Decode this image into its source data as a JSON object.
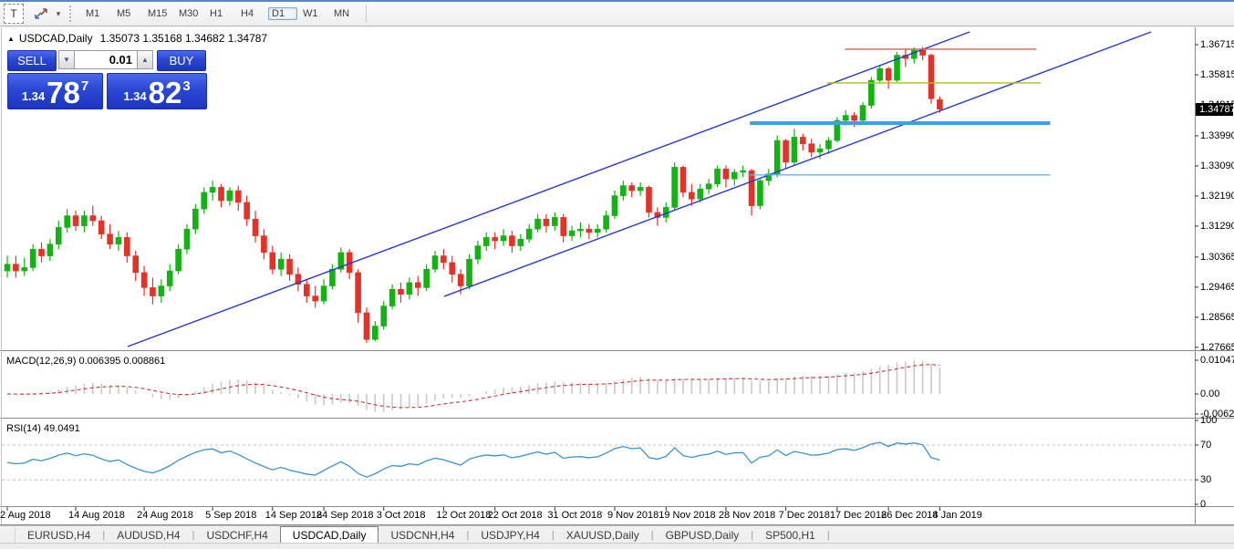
{
  "toolbar": {
    "text_tool_label": "T",
    "timeframes": [
      "M1",
      "M5",
      "M15",
      "M30",
      "H1",
      "H4",
      "D1",
      "W1",
      "MN"
    ],
    "active_timeframe": "D1"
  },
  "chart_header": {
    "collapse_arrow": "▲",
    "symbol_period": "USDCAD,Daily",
    "ohlc_text": "1.35073 1.35168 1.34682 1.34787"
  },
  "trade_panel": {
    "sell_label": "SELL",
    "buy_label": "BUY",
    "volume": "0.01",
    "spinner_down": "▼",
    "spinner_up": "▲",
    "sell_price": {
      "prefix": "1.34",
      "big": "78",
      "sup": "7"
    },
    "buy_price": {
      "prefix": "1.34",
      "big": "82",
      "sup": "3"
    }
  },
  "price_axis": {
    "labels": [
      "1.36715",
      "1.35815",
      "1.34915",
      "1.33990",
      "1.33090",
      "1.32190",
      "1.31290",
      "1.30365",
      "1.29465",
      "1.28565",
      "1.27665"
    ],
    "current": "1.34787"
  },
  "macd": {
    "label": "MACD(12,26,9) 0.006395 0.008861",
    "params": [
      12,
      26,
      9
    ],
    "main_value": 0.006395,
    "signal_value": 0.008861,
    "axis": [
      {
        "label": "0.010474",
        "value": 0.010474
      },
      {
        "label": "0.00",
        "value": 0
      },
      {
        "label": "-0.006218",
        "value": -0.006218
      }
    ]
  },
  "rsi": {
    "label": "RSI(14) 49.0491",
    "period": 14,
    "value": 49.0491,
    "levels": [
      70,
      30
    ],
    "axis": [
      {
        "label": "100",
        "value": 100
      },
      {
        "label": "70",
        "value": 70
      },
      {
        "label": "30",
        "value": 30
      },
      {
        "label": "0",
        "value": 0
      }
    ]
  },
  "date_axis": {
    "ticks": [
      {
        "label": "2 Aug 2018",
        "bar": 0
      },
      {
        "label": "14 Aug 2018",
        "bar": 8
      },
      {
        "label": "24 Aug 2018",
        "bar": 16
      },
      {
        "label": "5 Sep 2018",
        "bar": 24
      },
      {
        "label": "14 Sep 2018",
        "bar": 31
      },
      {
        "label": "24 Sep 2018",
        "bar": 37
      },
      {
        "label": "3 Oct 2018",
        "bar": 44
      },
      {
        "label": "12 Oct 2018",
        "bar": 51
      },
      {
        "label": "22 Oct 2018",
        "bar": 57
      },
      {
        "label": "31 Oct 2018",
        "bar": 64
      },
      {
        "label": "9 Nov 2018",
        "bar": 71
      },
      {
        "label": "19 Nov 2018",
        "bar": 77
      },
      {
        "label": "28 Nov 2018",
        "bar": 84
      },
      {
        "label": "7 Dec 2018",
        "bar": 91
      },
      {
        "label": "17 Dec 2018",
        "bar": 97
      },
      {
        "label": "26 Dec 2018",
        "bar": 103
      },
      {
        "label": "4 Jan 2019",
        "bar": 109
      }
    ]
  },
  "tabs": {
    "items": [
      "EURUSD,H4",
      "AUDUSD,H4",
      "USDCHF,H4",
      "USDCAD,Daily",
      "USDCNH,H4",
      "USDJPY,H4",
      "XAUUSD,Daily",
      "GBPUSD,Daily",
      "SP500,H1"
    ],
    "active": "USDCAD,Daily"
  },
  "colors": {
    "bull": "#12b312",
    "bear": "#e53229",
    "wick_bull": "#12b312",
    "wick_bear": "#e53229",
    "channel": "#2638cf",
    "hline_red": "#dd5a50",
    "hline_yellow": "#b6bc20",
    "hline_blue_thick": "#3ea0e6",
    "hline_blue_thin": "#70b0e0",
    "macd_bar": "#c9c9c9",
    "macd_signal": "#cc2f2f",
    "rsi_line": "#3a93d5",
    "level_dash": "#c0c0c0",
    "panel_sep": "#8a8a8a",
    "current_price_bg": "#000000",
    "trade_blue": "#2a47d4"
  },
  "chart_data": {
    "type": "candlestick",
    "symbol": "USDCAD",
    "timeframe": "Daily",
    "price_range_shown": [
      1.27665,
      1.36715
    ],
    "ohlc": [
      [
        1.2995,
        1.304,
        1.2975,
        1.3015
      ],
      [
        1.3015,
        1.304,
        1.2975,
        1.2995
      ],
      [
        1.2995,
        1.3035,
        1.298,
        1.3005
      ],
      [
        1.3005,
        1.3075,
        1.2995,
        1.306
      ],
      [
        1.306,
        1.308,
        1.302,
        1.304
      ],
      [
        1.304,
        1.309,
        1.3025,
        1.3075
      ],
      [
        1.3075,
        1.3145,
        1.306,
        1.3125
      ],
      [
        1.3125,
        1.318,
        1.311,
        1.316
      ],
      [
        1.316,
        1.3175,
        1.3115,
        1.313
      ],
      [
        1.313,
        1.3175,
        1.311,
        1.316
      ],
      [
        1.316,
        1.319,
        1.313,
        1.3145
      ],
      [
        1.3145,
        1.316,
        1.309,
        1.3105
      ],
      [
        1.3105,
        1.3135,
        1.306,
        1.3075
      ],
      [
        1.3075,
        1.3115,
        1.3055,
        1.3095
      ],
      [
        1.3095,
        1.311,
        1.302,
        1.304
      ],
      [
        1.304,
        1.3055,
        1.2965,
        1.299
      ],
      [
        1.299,
        1.301,
        1.292,
        1.2945
      ],
      [
        1.2945,
        1.2975,
        1.2895,
        1.292
      ],
      [
        1.292,
        1.297,
        1.29,
        1.295
      ],
      [
        1.295,
        1.3015,
        1.2935,
        1.2995
      ],
      [
        1.2995,
        1.3075,
        1.2985,
        1.306
      ],
      [
        1.306,
        1.3135,
        1.3045,
        1.312
      ],
      [
        1.312,
        1.3195,
        1.3105,
        1.318
      ],
      [
        1.318,
        1.3245,
        1.3165,
        1.323
      ],
      [
        1.323,
        1.3265,
        1.3205,
        1.3245
      ],
      [
        1.3245,
        1.3255,
        1.3185,
        1.3205
      ],
      [
        1.3205,
        1.3245,
        1.319,
        1.3235
      ],
      [
        1.3235,
        1.325,
        1.3175,
        1.32
      ],
      [
        1.32,
        1.322,
        1.313,
        1.315
      ],
      [
        1.315,
        1.3175,
        1.308,
        1.31
      ],
      [
        1.31,
        1.312,
        1.303,
        1.305
      ],
      [
        1.305,
        1.307,
        1.2985,
        1.3
      ],
      [
        1.3,
        1.305,
        1.298,
        1.303
      ],
      [
        1.303,
        1.3045,
        1.2965,
        1.2985
      ],
      [
        1.2985,
        1.3005,
        1.2935,
        1.2955
      ],
      [
        1.2955,
        1.297,
        1.29,
        1.292
      ],
      [
        1.292,
        1.295,
        1.2885,
        1.2905
      ],
      [
        1.2905,
        1.297,
        1.2895,
        1.295
      ],
      [
        1.295,
        1.3015,
        1.294,
        1.3
      ],
      [
        1.3,
        1.3065,
        1.299,
        1.305
      ],
      [
        1.305,
        1.306,
        1.297,
        1.299
      ],
      [
        1.299,
        1.3,
        1.284,
        1.287
      ],
      [
        1.287,
        1.2885,
        1.278,
        1.279
      ],
      [
        1.279,
        1.2845,
        1.2785,
        1.283
      ],
      [
        1.283,
        1.2905,
        1.282,
        1.289
      ],
      [
        1.289,
        1.2955,
        1.288,
        1.294
      ],
      [
        1.294,
        1.296,
        1.29,
        1.2925
      ],
      [
        1.2925,
        1.2975,
        1.291,
        1.296
      ],
      [
        1.296,
        1.298,
        1.292,
        1.2945
      ],
      [
        1.2945,
        1.3015,
        1.2935,
        1.3
      ],
      [
        1.3,
        1.3055,
        1.299,
        1.304
      ],
      [
        1.304,
        1.306,
        1.3,
        1.302
      ],
      [
        1.302,
        1.304,
        1.296,
        1.2985
      ],
      [
        1.2985,
        1.3,
        1.2925,
        1.295
      ],
      [
        1.295,
        1.3045,
        1.294,
        1.303
      ],
      [
        1.303,
        1.3085,
        1.3015,
        1.307
      ],
      [
        1.307,
        1.311,
        1.3055,
        1.3095
      ],
      [
        1.3095,
        1.311,
        1.306,
        1.3085
      ],
      [
        1.3085,
        1.312,
        1.307,
        1.31
      ],
      [
        1.31,
        1.3115,
        1.305,
        1.307
      ],
      [
        1.307,
        1.3105,
        1.3055,
        1.309
      ],
      [
        1.309,
        1.3135,
        1.308,
        1.312
      ],
      [
        1.312,
        1.3165,
        1.311,
        1.315
      ],
      [
        1.315,
        1.3165,
        1.311,
        1.313
      ],
      [
        1.313,
        1.317,
        1.3115,
        1.3155
      ],
      [
        1.3155,
        1.3165,
        1.308,
        1.31
      ],
      [
        1.31,
        1.313,
        1.3085,
        1.3115
      ],
      [
        1.3115,
        1.314,
        1.3095,
        1.312
      ],
      [
        1.312,
        1.3135,
        1.309,
        1.311
      ],
      [
        1.311,
        1.3135,
        1.3095,
        1.312
      ],
      [
        1.312,
        1.3175,
        1.311,
        1.316
      ],
      [
        1.316,
        1.3235,
        1.315,
        1.322
      ],
      [
        1.322,
        1.3265,
        1.3205,
        1.325
      ],
      [
        1.325,
        1.326,
        1.3215,
        1.3235
      ],
      [
        1.3235,
        1.326,
        1.322,
        1.3245
      ],
      [
        1.3245,
        1.325,
        1.3155,
        1.317
      ],
      [
        1.317,
        1.3185,
        1.313,
        1.3155
      ],
      [
        1.3155,
        1.32,
        1.314,
        1.3185
      ],
      [
        1.3185,
        1.332,
        1.3175,
        1.3305
      ],
      [
        1.3305,
        1.331,
        1.3215,
        1.323
      ],
      [
        1.323,
        1.3255,
        1.319,
        1.321
      ],
      [
        1.321,
        1.3255,
        1.32,
        1.324
      ],
      [
        1.324,
        1.327,
        1.3225,
        1.3255
      ],
      [
        1.3255,
        1.331,
        1.3245,
        1.33
      ],
      [
        1.33,
        1.331,
        1.3245,
        1.327
      ],
      [
        1.327,
        1.33,
        1.325,
        1.329
      ],
      [
        1.329,
        1.331,
        1.3275,
        1.3295
      ],
      [
        1.3295,
        1.33,
        1.316,
        1.319
      ],
      [
        1.319,
        1.327,
        1.318,
        1.3265
      ],
      [
        1.3265,
        1.33,
        1.325,
        1.3285
      ],
      [
        1.3285,
        1.34,
        1.3275,
        1.3385
      ],
      [
        1.3385,
        1.339,
        1.33,
        1.332
      ],
      [
        1.332,
        1.342,
        1.331,
        1.3395
      ],
      [
        1.3395,
        1.3405,
        1.3355,
        1.3375
      ],
      [
        1.3375,
        1.339,
        1.3335,
        1.335
      ],
      [
        1.335,
        1.3375,
        1.333,
        1.336
      ],
      [
        1.336,
        1.3395,
        1.3345,
        1.3385
      ],
      [
        1.3385,
        1.3455,
        1.338,
        1.3445
      ],
      [
        1.3445,
        1.3475,
        1.343,
        1.346
      ],
      [
        1.346,
        1.347,
        1.3425,
        1.3445
      ],
      [
        1.3445,
        1.35,
        1.3435,
        1.349
      ],
      [
        1.349,
        1.3575,
        1.348,
        1.3565
      ],
      [
        1.3565,
        1.361,
        1.3555,
        1.36
      ],
      [
        1.36,
        1.3605,
        1.354,
        1.3565
      ],
      [
        1.3565,
        1.365,
        1.356,
        1.364
      ],
      [
        1.364,
        1.366,
        1.3605,
        1.363
      ],
      [
        1.363,
        1.3663,
        1.3615,
        1.3655
      ],
      [
        1.3655,
        1.3665,
        1.3625,
        1.364
      ],
      [
        1.364,
        1.3645,
        1.3495,
        1.351
      ],
      [
        1.35073,
        1.35168,
        1.34682,
        1.34787
      ]
    ],
    "overlays": {
      "hlines": [
        {
          "name": "resistance-line-red",
          "price": 1.3658,
          "color_key": "hline_red",
          "bar_from": 97.9,
          "bar_to": 120.3,
          "width": 1.4
        },
        {
          "name": "support-line-yellow",
          "price": 1.3557,
          "color_key": "hline_yellow",
          "bar_from": 95.8,
          "bar_to": 120.8,
          "width": 1.4
        },
        {
          "name": "support-line-blue-thick",
          "price": 1.3437,
          "color_key": "hline_blue_thick",
          "bar_from": 86.8,
          "bar_to": 121.9,
          "width": 4
        },
        {
          "name": "support-line-blue-thin",
          "price": 1.3282,
          "color_key": "hline_blue_thin",
          "bar_from": 86.8,
          "bar_to": 121.9,
          "width": 1.4
        }
      ],
      "trendlines": [
        {
          "name": "channel-upper",
          "bar1": 14.07,
          "price1": 1.27689,
          "bar2": 112.5,
          "price2": 1.37097
        },
        {
          "name": "channel-lower",
          "bar1": 51.07,
          "price1": 1.2919,
          "bar2": 133.7,
          "price2": 1.37097
        }
      ]
    }
  }
}
